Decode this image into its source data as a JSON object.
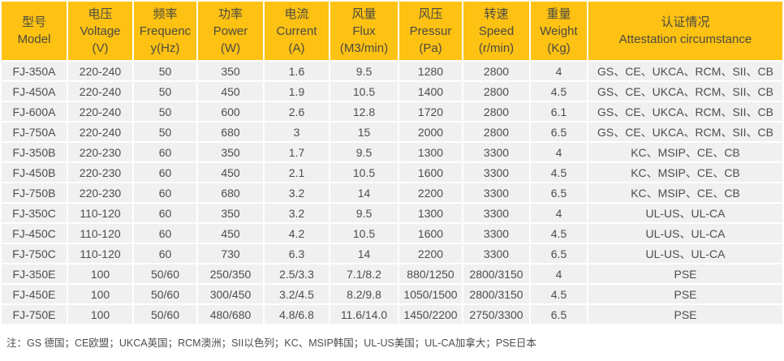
{
  "table": {
    "columns": [
      {
        "id": "model",
        "lines": [
          "型号",
          "Model"
        ]
      },
      {
        "id": "voltage",
        "lines": [
          "电压",
          "Voltage",
          "(V)"
        ]
      },
      {
        "id": "frequency",
        "lines": [
          "频率",
          "Frequenc",
          "y(Hz)"
        ]
      },
      {
        "id": "power",
        "lines": [
          "功率",
          "Power",
          "(W)"
        ]
      },
      {
        "id": "current",
        "lines": [
          "电流",
          "Current",
          "(A)"
        ]
      },
      {
        "id": "flux",
        "lines": [
          "风量",
          "Flux",
          "(M3/min)"
        ]
      },
      {
        "id": "pressure",
        "lines": [
          "风压",
          "Pressur",
          "(Pa)"
        ]
      },
      {
        "id": "speed",
        "lines": [
          "转速",
          "Speed",
          "(r/min)"
        ]
      },
      {
        "id": "weight",
        "lines": [
          "重量",
          "Weight",
          "(Kg)"
        ]
      },
      {
        "id": "attestation",
        "lines": [
          "认证情况",
          "Attestation circumstance"
        ]
      }
    ],
    "rows": [
      [
        "FJ-350A",
        "220-240",
        "50",
        "350",
        "1.6",
        "9.5",
        "1280",
        "2800",
        "4",
        "GS、CE、UKCA、RCM、SII、CB"
      ],
      [
        "FJ-450A",
        "220-240",
        "50",
        "450",
        "1.9",
        "10.5",
        "1400",
        "2800",
        "4.5",
        "GS、CE、UKCA、RCM、SII、CB"
      ],
      [
        "FJ-600A",
        "220-240",
        "50",
        "600",
        "2.6",
        "12.8",
        "1720",
        "2800",
        "6.1",
        "GS、CE、UKCA、RCM、SII、CB"
      ],
      [
        "FJ-750A",
        "220-240",
        "50",
        "680",
        "3",
        "15",
        "2000",
        "2800",
        "6.5",
        "GS、CE、UKCA、RCM、SII、CB"
      ],
      [
        "FJ-350B",
        "220-230",
        "60",
        "350",
        "1.7",
        "9.5",
        "1300",
        "3300",
        "4",
        "KC、MSIP、CE、CB"
      ],
      [
        "FJ-450B",
        "220-230",
        "60",
        "450",
        "2.1",
        "10.5",
        "1600",
        "3300",
        "4.5",
        "KC、MSIP、CE、CB"
      ],
      [
        "FJ-750B",
        "220-230",
        "60",
        "680",
        "3.2",
        "14",
        "2200",
        "3300",
        "6.5",
        "KC、MSIP、CE、CB"
      ],
      [
        "FJ-350C",
        "110-120",
        "60",
        "350",
        "3.2",
        "9.5",
        "1300",
        "3300",
        "4",
        "UL-US、UL-CA"
      ],
      [
        "FJ-450C",
        "110-120",
        "60",
        "450",
        "4.2",
        "10.5",
        "1600",
        "3300",
        "4.5",
        "UL-US、UL-CA"
      ],
      [
        "FJ-750C",
        "110-120",
        "60",
        "730",
        "6.3",
        "14",
        "2200",
        "3300",
        "6.5",
        "UL-US、UL-CA"
      ],
      [
        "FJ-350E",
        "100",
        "50/60",
        "250/350",
        "2.5/3.3",
        "7.1/8.2",
        "880/1250",
        "2800/3150",
        "4",
        "PSE"
      ],
      [
        "FJ-450E",
        "100",
        "50/60",
        "300/450",
        "3.2/4.5",
        "8.2/9.8",
        "1050/1500",
        "2800/3150",
        "4.5",
        "PSE"
      ],
      [
        "FJ-750E",
        "100",
        "50/60",
        "480/680",
        "4.8/6.8",
        "11.6/14.0",
        "1450/2200",
        "2750/3300",
        "6.5",
        "PSE"
      ]
    ]
  },
  "footnote": "注：GS 德国；CE欧盟；UKCA英国；RCM澳洲；SII以色列；KC、MSIP韩国；UL-US美国；UL-CA加拿大；PSE日本",
  "colors": {
    "header_bg": "#FFC112",
    "header_text": "#4A4A42",
    "row_bg": "#F0F0F0",
    "cell_text": "#4D4D4D",
    "grid": "#FFFFFF",
    "footnote_text": "#4D4D4D"
  }
}
